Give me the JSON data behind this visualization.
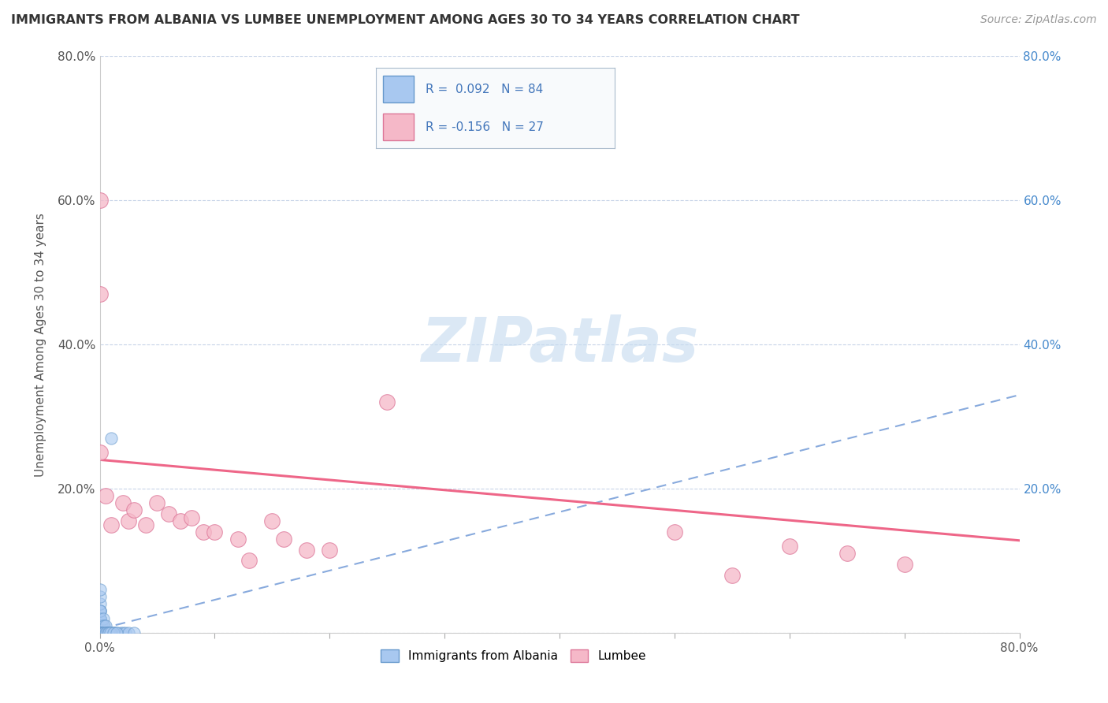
{
  "title": "IMMIGRANTS FROM ALBANIA VS LUMBEE UNEMPLOYMENT AMONG AGES 30 TO 34 YEARS CORRELATION CHART",
  "source": "Source: ZipAtlas.com",
  "ylabel": "Unemployment Among Ages 30 to 34 years",
  "xlabel": "",
  "xlim": [
    0,
    0.8
  ],
  "ylim": [
    0,
    0.8
  ],
  "albania_color": "#a8c8f0",
  "albania_edge": "#6699cc",
  "lumbee_color": "#f5b8c8",
  "lumbee_edge": "#dd7799",
  "regression_albania_color": "#88aadd",
  "regression_lumbee_color": "#ee6688",
  "watermark_color": "#c8ddf0",
  "R_albania": 0.092,
  "N_albania": 84,
  "R_lumbee": -0.156,
  "N_lumbee": 27,
  "albania_x": [
    0.0,
    0.0,
    0.0,
    0.0,
    0.0,
    0.0,
    0.0,
    0.0,
    0.0,
    0.0,
    0.0,
    0.0,
    0.0,
    0.0,
    0.0,
    0.0,
    0.0,
    0.0,
    0.0,
    0.0,
    0.0,
    0.0,
    0.0,
    0.0,
    0.0,
    0.0,
    0.0,
    0.0,
    0.0,
    0.0,
    0.0,
    0.0,
    0.0,
    0.0,
    0.0,
    0.0,
    0.0,
    0.0,
    0.0,
    0.0,
    0.002,
    0.002,
    0.002,
    0.002,
    0.003,
    0.003,
    0.003,
    0.004,
    0.004,
    0.005,
    0.005,
    0.006,
    0.007,
    0.008,
    0.009,
    0.01,
    0.011,
    0.012,
    0.013,
    0.015,
    0.018,
    0.02,
    0.022,
    0.025,
    0.03,
    0.001,
    0.001,
    0.001,
    0.001,
    0.001,
    0.001,
    0.001,
    0.001,
    0.002,
    0.002,
    0.003,
    0.004,
    0.005,
    0.006,
    0.007,
    0.008,
    0.009,
    0.01,
    0.012,
    0.015
  ],
  "albania_y": [
    0.0,
    0.0,
    0.0,
    0.0,
    0.0,
    0.0,
    0.0,
    0.0,
    0.0,
    0.0,
    0.0,
    0.0,
    0.0,
    0.0,
    0.0,
    0.0,
    0.0,
    0.0,
    0.0,
    0.0,
    0.01,
    0.01,
    0.01,
    0.02,
    0.02,
    0.03,
    0.03,
    0.04,
    0.05,
    0.06,
    0.0,
    0.0,
    0.01,
    0.01,
    0.02,
    0.02,
    0.03,
    0.0,
    0.0,
    0.0,
    0.0,
    0.01,
    0.0,
    0.01,
    0.01,
    0.02,
    0.0,
    0.0,
    0.01,
    0.0,
    0.01,
    0.0,
    0.0,
    0.0,
    0.0,
    0.0,
    0.0,
    0.0,
    0.0,
    0.0,
    0.0,
    0.0,
    0.0,
    0.0,
    0.0,
    0.0,
    0.0,
    0.0,
    0.0,
    0.0,
    0.0,
    0.0,
    0.0,
    0.0,
    0.0,
    0.0,
    0.0,
    0.0,
    0.0,
    0.0,
    0.0,
    0.0,
    0.27,
    0.0,
    0.0
  ],
  "lumbee_x": [
    0.0,
    0.0,
    0.0,
    0.005,
    0.01,
    0.02,
    0.025,
    0.03,
    0.04,
    0.05,
    0.06,
    0.07,
    0.08,
    0.09,
    0.1,
    0.12,
    0.13,
    0.15,
    0.16,
    0.18,
    0.2,
    0.25,
    0.5,
    0.55,
    0.6,
    0.65,
    0.7
  ],
  "lumbee_y": [
    0.6,
    0.47,
    0.25,
    0.19,
    0.15,
    0.18,
    0.155,
    0.17,
    0.15,
    0.18,
    0.165,
    0.155,
    0.16,
    0.14,
    0.14,
    0.13,
    0.1,
    0.155,
    0.13,
    0.115,
    0.115,
    0.32,
    0.14,
    0.08,
    0.12,
    0.11,
    0.095
  ],
  "albania_trend_x": [
    0.0,
    0.8
  ],
  "albania_trend_y": [
    0.005,
    0.33
  ],
  "lumbee_trend_x": [
    0.0,
    0.8
  ],
  "lumbee_trend_y": [
    0.24,
    0.128
  ]
}
